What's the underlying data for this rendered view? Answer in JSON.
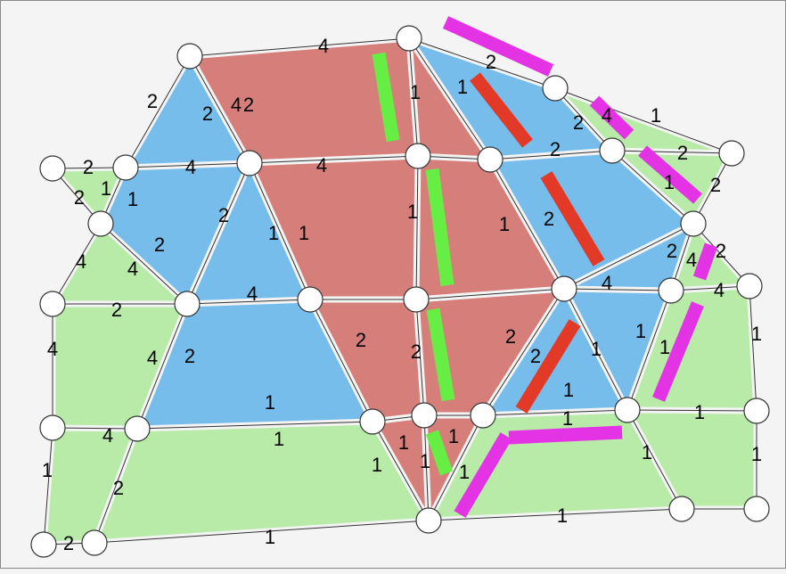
{
  "colors": {
    "low": "#b8eaa8",
    "mid": "#77bdec",
    "high": "#d67f7a",
    "green_bar": "#66ee44",
    "red_bar": "#e23a26",
    "magenta_bar": "#e433e4"
  },
  "edge_labels": [
    "4",
    "2",
    "2",
    "4",
    "2",
    "1",
    "1",
    "2",
    "2",
    "4",
    "1",
    "2",
    "1",
    "2",
    "2",
    "4",
    "4",
    "2",
    "2",
    "1",
    "1",
    "2",
    "1",
    "1",
    "1",
    "1",
    "2",
    "2",
    "4",
    "2",
    "4",
    "4",
    "2",
    "2",
    "4",
    "4",
    "4",
    "4",
    "4",
    "2",
    "2",
    "2",
    "2",
    "2",
    "1",
    "1",
    "1",
    "1",
    "1",
    "1",
    "4",
    "1",
    "1",
    "1",
    "1",
    "1",
    "1",
    "1",
    "1",
    "1",
    "1",
    "1",
    "2",
    "1",
    "1",
    "2"
  ]
}
